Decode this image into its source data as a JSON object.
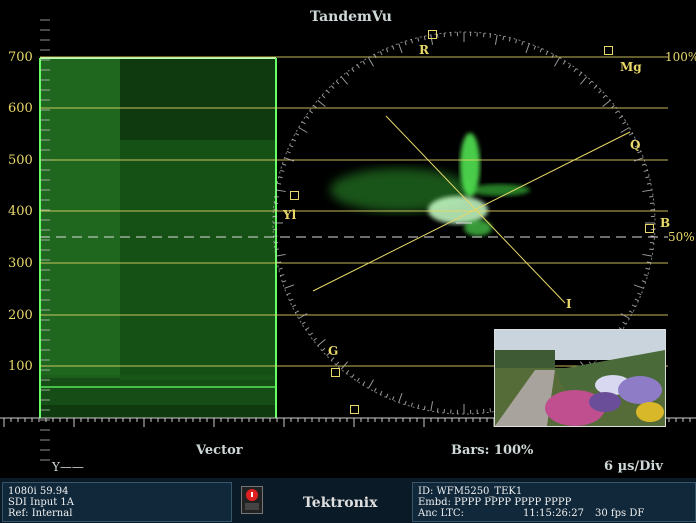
{
  "window": {
    "title": "TandemVu"
  },
  "waveform": {
    "y_axis_labels": [
      "700",
      "600",
      "500",
      "400",
      "300",
      "200",
      "100"
    ],
    "y_label": "Y——",
    "mode_label": "Vector",
    "bars_label": "Bars: 100%",
    "timebase": "6 µs/Div"
  },
  "vectorscope": {
    "targets": [
      {
        "name": "R",
        "label": "R"
      },
      {
        "name": "Mg",
        "label": "Mg"
      },
      {
        "name": "B",
        "label": "B"
      },
      {
        "name": "G",
        "label": "G"
      },
      {
        "name": "Yl",
        "label": "Yl"
      },
      {
        "name": "Cy",
        "label": ""
      }
    ],
    "axis_labels": {
      "q": "Q",
      "i": "I"
    },
    "graticule_labels": {
      "p100": "100%",
      "p50": "50%"
    }
  },
  "status_bar": {
    "format": "1080i 59.94",
    "input": "SDI Input 1A",
    "ref": "Ref: Internal",
    "brand": "Tektronix",
    "id": "ID: WFM5250_TEK1",
    "embd": "Embd: PPPP PPPP PPPP PPPP",
    "anc_ltc": "Anc LTC:",
    "timecode": "11:15:26:27",
    "fps": "30 fps DF"
  },
  "colors": {
    "trace": "#3cff3c",
    "graticule": "#e8d868",
    "text": "#cfd8d8",
    "status_bg": "#10283a"
  }
}
